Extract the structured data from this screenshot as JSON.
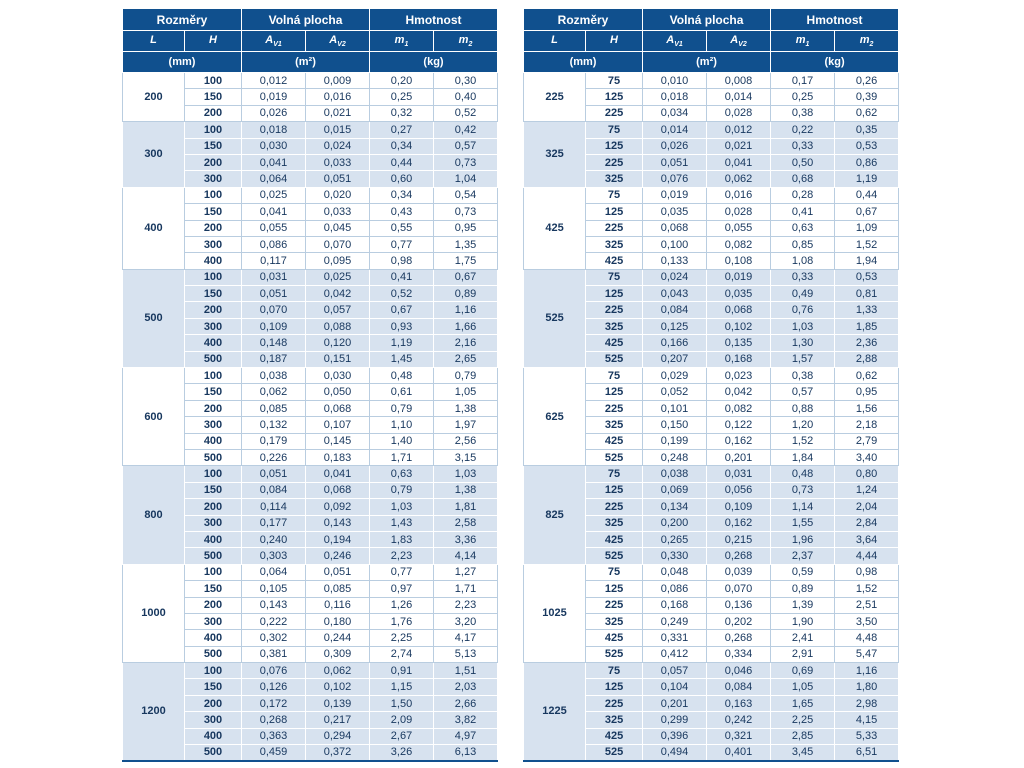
{
  "colors": {
    "header_bg": "#10508E",
    "header_text": "#FFFFFF",
    "row_alt_bg": "#D7E2EF",
    "value_text": "#17375E",
    "grid_light": "#B9CDE0"
  },
  "header": {
    "groups": [
      "Rozměry",
      "Volná plocha",
      "Hmotnost"
    ],
    "cols": [
      {
        "base": "L",
        "sub": ""
      },
      {
        "base": "H",
        "sub": ""
      },
      {
        "base": "A",
        "sub": "V1"
      },
      {
        "base": "A",
        "sub": "V2"
      },
      {
        "base": "m",
        "sub": "1"
      },
      {
        "base": "m",
        "sub": "2"
      }
    ],
    "units": [
      "(mm)",
      "(m²)",
      "(kg)"
    ]
  },
  "tables": [
    {
      "groups": [
        {
          "L": "200",
          "rows": [
            [
              "100",
              "0,012",
              "0,009",
              "0,20",
              "0,30"
            ],
            [
              "150",
              "0,019",
              "0,016",
              "0,25",
              "0,40"
            ],
            [
              "200",
              "0,026",
              "0,021",
              "0,32",
              "0,52"
            ]
          ]
        },
        {
          "L": "300",
          "rows": [
            [
              "100",
              "0,018",
              "0,015",
              "0,27",
              "0,42"
            ],
            [
              "150",
              "0,030",
              "0,024",
              "0,34",
              "0,57"
            ],
            [
              "200",
              "0,041",
              "0,033",
              "0,44",
              "0,73"
            ],
            [
              "300",
              "0,064",
              "0,051",
              "0,60",
              "1,04"
            ]
          ]
        },
        {
          "L": "400",
          "rows": [
            [
              "100",
              "0,025",
              "0,020",
              "0,34",
              "0,54"
            ],
            [
              "150",
              "0,041",
              "0,033",
              "0,43",
              "0,73"
            ],
            [
              "200",
              "0,055",
              "0,045",
              "0,55",
              "0,95"
            ],
            [
              "300",
              "0,086",
              "0,070",
              "0,77",
              "1,35"
            ],
            [
              "400",
              "0,117",
              "0,095",
              "0,98",
              "1,75"
            ]
          ]
        },
        {
          "L": "500",
          "rows": [
            [
              "100",
              "0,031",
              "0,025",
              "0,41",
              "0,67"
            ],
            [
              "150",
              "0,051",
              "0,042",
              "0,52",
              "0,89"
            ],
            [
              "200",
              "0,070",
              "0,057",
              "0,67",
              "1,16"
            ],
            [
              "300",
              "0,109",
              "0,088",
              "0,93",
              "1,66"
            ],
            [
              "400",
              "0,148",
              "0,120",
              "1,19",
              "2,16"
            ],
            [
              "500",
              "0,187",
              "0,151",
              "1,45",
              "2,65"
            ]
          ]
        },
        {
          "L": "600",
          "rows": [
            [
              "100",
              "0,038",
              "0,030",
              "0,48",
              "0,79"
            ],
            [
              "150",
              "0,062",
              "0,050",
              "0,61",
              "1,05"
            ],
            [
              "200",
              "0,085",
              "0,068",
              "0,79",
              "1,38"
            ],
            [
              "300",
              "0,132",
              "0,107",
              "1,10",
              "1,97"
            ],
            [
              "400",
              "0,179",
              "0,145",
              "1,40",
              "2,56"
            ],
            [
              "500",
              "0,226",
              "0,183",
              "1,71",
              "3,15"
            ]
          ]
        },
        {
          "L": "800",
          "rows": [
            [
              "100",
              "0,051",
              "0,041",
              "0,63",
              "1,03"
            ],
            [
              "150",
              "0,084",
              "0,068",
              "0,79",
              "1,38"
            ],
            [
              "200",
              "0,114",
              "0,092",
              "1,03",
              "1,81"
            ],
            [
              "300",
              "0,177",
              "0,143",
              "1,43",
              "2,58"
            ],
            [
              "400",
              "0,240",
              "0,194",
              "1,83",
              "3,36"
            ],
            [
              "500",
              "0,303",
              "0,246",
              "2,23",
              "4,14"
            ]
          ]
        },
        {
          "L": "1000",
          "rows": [
            [
              "100",
              "0,064",
              "0,051",
              "0,77",
              "1,27"
            ],
            [
              "150",
              "0,105",
              "0,085",
              "0,97",
              "1,71"
            ],
            [
              "200",
              "0,143",
              "0,116",
              "1,26",
              "2,23"
            ],
            [
              "300",
              "0,222",
              "0,180",
              "1,76",
              "3,20"
            ],
            [
              "400",
              "0,302",
              "0,244",
              "2,25",
              "4,17"
            ],
            [
              "500",
              "0,381",
              "0,309",
              "2,74",
              "5,13"
            ]
          ]
        },
        {
          "L": "1200",
          "rows": [
            [
              "100",
              "0,076",
              "0,062",
              "0,91",
              "1,51"
            ],
            [
              "150",
              "0,126",
              "0,102",
              "1,15",
              "2,03"
            ],
            [
              "200",
              "0,172",
              "0,139",
              "1,50",
              "2,66"
            ],
            [
              "300",
              "0,268",
              "0,217",
              "2,09",
              "3,82"
            ],
            [
              "400",
              "0,363",
              "0,294",
              "2,67",
              "4,97"
            ],
            [
              "500",
              "0,459",
              "0,372",
              "3,26",
              "6,13"
            ]
          ]
        }
      ]
    },
    {
      "groups": [
        {
          "L": "225",
          "rows": [
            [
              "75",
              "0,010",
              "0,008",
              "0,17",
              "0,26"
            ],
            [
              "125",
              "0,018",
              "0,014",
              "0,25",
              "0,39"
            ],
            [
              "225",
              "0,034",
              "0,028",
              "0,38",
              "0,62"
            ]
          ]
        },
        {
          "L": "325",
          "rows": [
            [
              "75",
              "0,014",
              "0,012",
              "0,22",
              "0,35"
            ],
            [
              "125",
              "0,026",
              "0,021",
              "0,33",
              "0,53"
            ],
            [
              "225",
              "0,051",
              "0,041",
              "0,50",
              "0,86"
            ],
            [
              "325",
              "0,076",
              "0,062",
              "0,68",
              "1,19"
            ]
          ]
        },
        {
          "L": "425",
          "rows": [
            [
              "75",
              "0,019",
              "0,016",
              "0,28",
              "0,44"
            ],
            [
              "125",
              "0,035",
              "0,028",
              "0,41",
              "0,67"
            ],
            [
              "225",
              "0,068",
              "0,055",
              "0,63",
              "1,09"
            ],
            [
              "325",
              "0,100",
              "0,082",
              "0,85",
              "1,52"
            ],
            [
              "425",
              "0,133",
              "0,108",
              "1,08",
              "1,94"
            ]
          ]
        },
        {
          "L": "525",
          "rows": [
            [
              "75",
              "0,024",
              "0,019",
              "0,33",
              "0,53"
            ],
            [
              "125",
              "0,043",
              "0,035",
              "0,49",
              "0,81"
            ],
            [
              "225",
              "0,084",
              "0,068",
              "0,76",
              "1,33"
            ],
            [
              "325",
              "0,125",
              "0,102",
              "1,03",
              "1,85"
            ],
            [
              "425",
              "0,166",
              "0,135",
              "1,30",
              "2,36"
            ],
            [
              "525",
              "0,207",
              "0,168",
              "1,57",
              "2,88"
            ]
          ]
        },
        {
          "L": "625",
          "rows": [
            [
              "75",
              "0,029",
              "0,023",
              "0,38",
              "0,62"
            ],
            [
              "125",
              "0,052",
              "0,042",
              "0,57",
              "0,95"
            ],
            [
              "225",
              "0,101",
              "0,082",
              "0,88",
              "1,56"
            ],
            [
              "325",
              "0,150",
              "0,122",
              "1,20",
              "2,18"
            ],
            [
              "425",
              "0,199",
              "0,162",
              "1,52",
              "2,79"
            ],
            [
              "525",
              "0,248",
              "0,201",
              "1,84",
              "3,40"
            ]
          ]
        },
        {
          "L": "825",
          "rows": [
            [
              "75",
              "0,038",
              "0,031",
              "0,48",
              "0,80"
            ],
            [
              "125",
              "0,069",
              "0,056",
              "0,73",
              "1,24"
            ],
            [
              "225",
              "0,134",
              "0,109",
              "1,14",
              "2,04"
            ],
            [
              "325",
              "0,200",
              "0,162",
              "1,55",
              "2,84"
            ],
            [
              "425",
              "0,265",
              "0,215",
              "1,96",
              "3,64"
            ],
            [
              "525",
              "0,330",
              "0,268",
              "2,37",
              "4,44"
            ]
          ]
        },
        {
          "L": "1025",
          "rows": [
            [
              "75",
              "0,048",
              "0,039",
              "0,59",
              "0,98"
            ],
            [
              "125",
              "0,086",
              "0,070",
              "0,89",
              "1,52"
            ],
            [
              "225",
              "0,168",
              "0,136",
              "1,39",
              "2,51"
            ],
            [
              "325",
              "0,249",
              "0,202",
              "1,90",
              "3,50"
            ],
            [
              "425",
              "0,331",
              "0,268",
              "2,41",
              "4,48"
            ],
            [
              "525",
              "0,412",
              "0,334",
              "2,91",
              "5,47"
            ]
          ]
        },
        {
          "L": "1225",
          "rows": [
            [
              "75",
              "0,057",
              "0,046",
              "0,69",
              "1,16"
            ],
            [
              "125",
              "0,104",
              "0,084",
              "1,05",
              "1,80"
            ],
            [
              "225",
              "0,201",
              "0,163",
              "1,65",
              "2,98"
            ],
            [
              "325",
              "0,299",
              "0,242",
              "2,25",
              "4,15"
            ],
            [
              "425",
              "0,396",
              "0,321",
              "2,85",
              "5,33"
            ],
            [
              "525",
              "0,494",
              "0,401",
              "3,45",
              "6,51"
            ]
          ]
        }
      ]
    }
  ]
}
